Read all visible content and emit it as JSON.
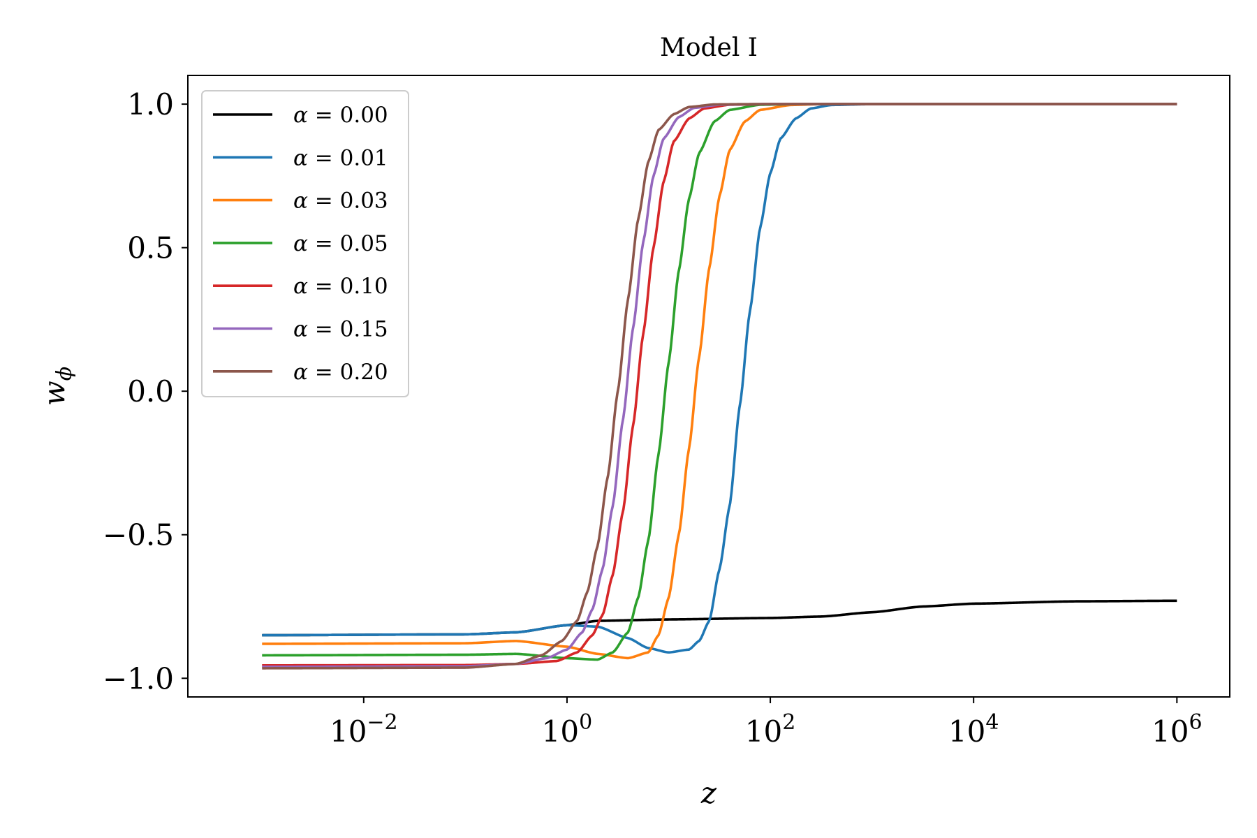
{
  "chart_data": {
    "type": "line",
    "title": "Model I",
    "xlabel": "z",
    "ylabel": "w",
    "ylabel_sub": "ϕ",
    "xscale": "log",
    "xlim_log10": [
      -3.73,
      6.52
    ],
    "ylim": [
      -1.065,
      1.1
    ],
    "x_ticks": [
      {
        "exp": -2,
        "base": "10",
        "sup": "−2"
      },
      {
        "exp": 0,
        "base": "10",
        "sup": "0"
      },
      {
        "exp": 2,
        "base": "10",
        "sup": "2"
      },
      {
        "exp": 4,
        "base": "10",
        "sup": "4"
      },
      {
        "exp": 6,
        "base": "10",
        "sup": "6"
      }
    ],
    "y_ticks": [
      {
        "value": 1.0,
        "label": "1.0"
      },
      {
        "value": 0.5,
        "label": "0.5"
      },
      {
        "value": 0.0,
        "label": "0.0"
      },
      {
        "value": -0.5,
        "label": "−0.5"
      },
      {
        "value": -1.0,
        "label": "−1.0"
      }
    ],
    "legend_position": "upper-left",
    "legend_symbol": "α",
    "series": [
      {
        "name": "0.00",
        "color": "#000000",
        "points": [
          [
            -3,
            -0.85
          ],
          [
            -1,
            -0.847
          ],
          [
            -0.5,
            -0.84
          ],
          [
            0,
            -0.815
          ],
          [
            0.3,
            -0.8
          ],
          [
            1,
            -0.795
          ],
          [
            2,
            -0.79
          ],
          [
            2.5,
            -0.785
          ],
          [
            3,
            -0.77
          ],
          [
            3.5,
            -0.75
          ],
          [
            4,
            -0.74
          ],
          [
            5,
            -0.732
          ],
          [
            6,
            -0.73
          ]
        ]
      },
      {
        "name": "0.01",
        "color": "#1f77b4",
        "points": [
          [
            -3,
            -0.85
          ],
          [
            -1,
            -0.847
          ],
          [
            -0.5,
            -0.84
          ],
          [
            0,
            -0.815
          ],
          [
            0.3,
            -0.82
          ],
          [
            0.6,
            -0.86
          ],
          [
            0.8,
            -0.895
          ],
          [
            1,
            -0.91
          ],
          [
            1.2,
            -0.9
          ],
          [
            1.3,
            -0.87
          ],
          [
            1.4,
            -0.8
          ],
          [
            1.5,
            -0.62
          ],
          [
            1.6,
            -0.4
          ],
          [
            1.7,
            -0.05
          ],
          [
            1.8,
            0.28
          ],
          [
            1.9,
            0.57
          ],
          [
            2,
            0.76
          ],
          [
            2.1,
            0.88
          ],
          [
            2.25,
            0.95
          ],
          [
            2.4,
            0.985
          ],
          [
            2.6,
            0.997
          ],
          [
            3,
            1.0
          ],
          [
            6,
            1.0
          ]
        ]
      },
      {
        "name": "0.03",
        "color": "#ff7f0e",
        "points": [
          [
            -3,
            -0.88
          ],
          [
            -1,
            -0.878
          ],
          [
            -0.5,
            -0.87
          ],
          [
            0,
            -0.89
          ],
          [
            0.3,
            -0.915
          ],
          [
            0.6,
            -0.93
          ],
          [
            0.8,
            -0.91
          ],
          [
            0.9,
            -0.85
          ],
          [
            1,
            -0.72
          ],
          [
            1.1,
            -0.5
          ],
          [
            1.2,
            -0.2
          ],
          [
            1.3,
            0.12
          ],
          [
            1.4,
            0.43
          ],
          [
            1.5,
            0.68
          ],
          [
            1.6,
            0.84
          ],
          [
            1.75,
            0.94
          ],
          [
            1.9,
            0.98
          ],
          [
            2.2,
            0.997
          ],
          [
            2.5,
            1.0
          ],
          [
            6,
            1.0
          ]
        ]
      },
      {
        "name": "0.05",
        "color": "#2ca02c",
        "points": [
          [
            -3,
            -0.92
          ],
          [
            -1,
            -0.918
          ],
          [
            -0.5,
            -0.915
          ],
          [
            0,
            -0.93
          ],
          [
            0.3,
            -0.935
          ],
          [
            0.45,
            -0.91
          ],
          [
            0.6,
            -0.84
          ],
          [
            0.7,
            -0.72
          ],
          [
            0.8,
            -0.52
          ],
          [
            0.9,
            -0.22
          ],
          [
            1,
            0.1
          ],
          [
            1.1,
            0.42
          ],
          [
            1.2,
            0.67
          ],
          [
            1.3,
            0.83
          ],
          [
            1.45,
            0.94
          ],
          [
            1.6,
            0.98
          ],
          [
            1.9,
            0.998
          ],
          [
            2.3,
            1.0
          ],
          [
            6,
            1.0
          ]
        ]
      },
      {
        "name": "0.10",
        "color": "#d62728",
        "points": [
          [
            -3,
            -0.955
          ],
          [
            -1,
            -0.954
          ],
          [
            -0.5,
            -0.95
          ],
          [
            -0.1,
            -0.94
          ],
          [
            0.1,
            -0.91
          ],
          [
            0.25,
            -0.85
          ],
          [
            0.35,
            -0.78
          ],
          [
            0.45,
            -0.64
          ],
          [
            0.55,
            -0.42
          ],
          [
            0.65,
            -0.12
          ],
          [
            0.75,
            0.2
          ],
          [
            0.85,
            0.5
          ],
          [
            0.95,
            0.73
          ],
          [
            1.05,
            0.87
          ],
          [
            1.2,
            0.95
          ],
          [
            1.35,
            0.985
          ],
          [
            1.6,
            0.998
          ],
          [
            2,
            1.0
          ],
          [
            6,
            1.0
          ]
        ]
      },
      {
        "name": "0.15",
        "color": "#9467bd",
        "points": [
          [
            -3,
            -0.96
          ],
          [
            -1,
            -0.958
          ],
          [
            -0.5,
            -0.95
          ],
          [
            -0.2,
            -0.93
          ],
          [
            0,
            -0.9
          ],
          [
            0.15,
            -0.84
          ],
          [
            0.25,
            -0.76
          ],
          [
            0.35,
            -0.62
          ],
          [
            0.45,
            -0.4
          ],
          [
            0.55,
            -0.1
          ],
          [
            0.65,
            0.22
          ],
          [
            0.75,
            0.52
          ],
          [
            0.85,
            0.75
          ],
          [
            0.95,
            0.88
          ],
          [
            1.1,
            0.955
          ],
          [
            1.25,
            0.987
          ],
          [
            1.5,
            0.998
          ],
          [
            1.9,
            1.0
          ],
          [
            6,
            1.0
          ]
        ]
      },
      {
        "name": "0.20",
        "color": "#8c564b",
        "points": [
          [
            -3,
            -0.965
          ],
          [
            -1,
            -0.963
          ],
          [
            -0.5,
            -0.95
          ],
          [
            -0.25,
            -0.92
          ],
          [
            -0.05,
            -0.87
          ],
          [
            0.1,
            -0.8
          ],
          [
            0.2,
            -0.7
          ],
          [
            0.3,
            -0.54
          ],
          [
            0.4,
            -0.3
          ],
          [
            0.5,
            0.0
          ],
          [
            0.6,
            0.32
          ],
          [
            0.7,
            0.6
          ],
          [
            0.8,
            0.8
          ],
          [
            0.9,
            0.91
          ],
          [
            1.05,
            0.965
          ],
          [
            1.2,
            0.99
          ],
          [
            1.45,
            0.999
          ],
          [
            1.8,
            1.0
          ],
          [
            6,
            1.0
          ]
        ]
      }
    ]
  }
}
